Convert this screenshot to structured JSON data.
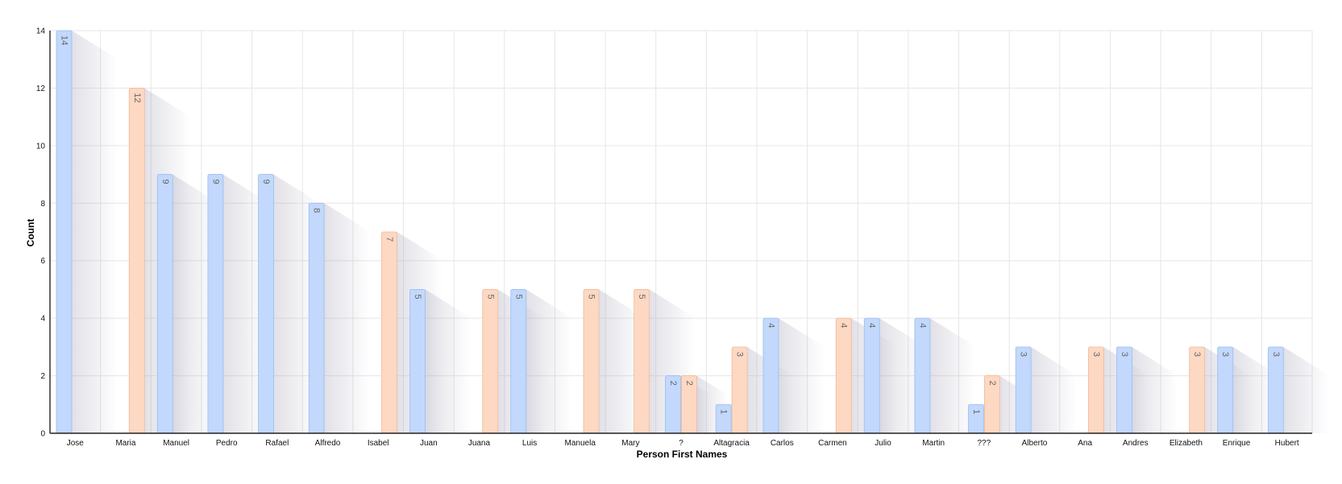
{
  "chart_data": {
    "type": "bar",
    "xlabel": "Person First Names",
    "ylabel": "Count",
    "ylim": [
      0,
      14
    ],
    "yticks": [
      0,
      2,
      4,
      6,
      8,
      10,
      12,
      14
    ],
    "grid": true,
    "categories": [
      "Jose",
      "Maria",
      "Manuel",
      "Pedro",
      "Rafael",
      "Alfredo",
      "Isabel",
      "Juan",
      "Juana",
      "Luis",
      "Manuela",
      "Mary",
      "?",
      "Altagracia",
      "Carlos",
      "Carmen",
      "Julio",
      "Martin",
      "???",
      "Alberto",
      "Ana",
      "Andres",
      "Elizabeth",
      "Enrique",
      "Hubert"
    ],
    "series": [
      {
        "color": "#c2d8fc",
        "values": [
          14,
          null,
          9,
          9,
          9,
          8,
          null,
          5,
          null,
          5,
          null,
          null,
          2,
          1,
          4,
          null,
          4,
          4,
          1,
          3,
          null,
          3,
          null,
          3,
          3
        ]
      },
      {
        "color": "#fdd8c3",
        "values": [
          null,
          12,
          null,
          null,
          null,
          null,
          7,
          null,
          5,
          null,
          5,
          5,
          2,
          3,
          null,
          4,
          null,
          null,
          2,
          null,
          3,
          null,
          3,
          null,
          null
        ]
      }
    ]
  }
}
